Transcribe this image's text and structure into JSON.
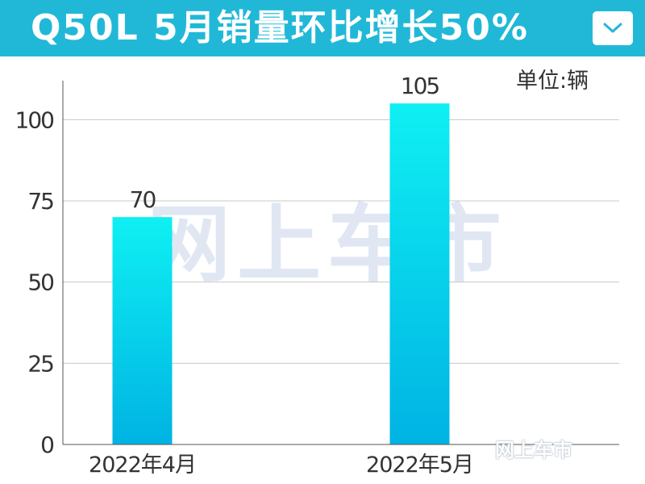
{
  "header": {
    "title": "Q50L 5月销量环比增长50%",
    "dropdown_icon": "chevron-down-icon"
  },
  "unit_label": "单位:辆",
  "watermark": "网上车市",
  "corner_watermark": "网上车市",
  "colors": {
    "title_bar": "#21b8d8",
    "bar_top": "#0ff0f3",
    "bar_bottom": "#00b3e3",
    "grid": "#c8c8c8",
    "axis": "#555555"
  },
  "chart_data": {
    "type": "bar",
    "categories": [
      "2022年4月",
      "2022年5月"
    ],
    "values": [
      70,
      105
    ],
    "data_labels": [
      "70",
      "105"
    ],
    "yticks": [
      0,
      25,
      50,
      75,
      100
    ],
    "ytick_labels": [
      "0",
      "25",
      "50",
      "75",
      "100"
    ],
    "ylim": [
      0,
      112
    ],
    "grid": true,
    "title": "",
    "xlabel": "",
    "ylabel": ""
  }
}
